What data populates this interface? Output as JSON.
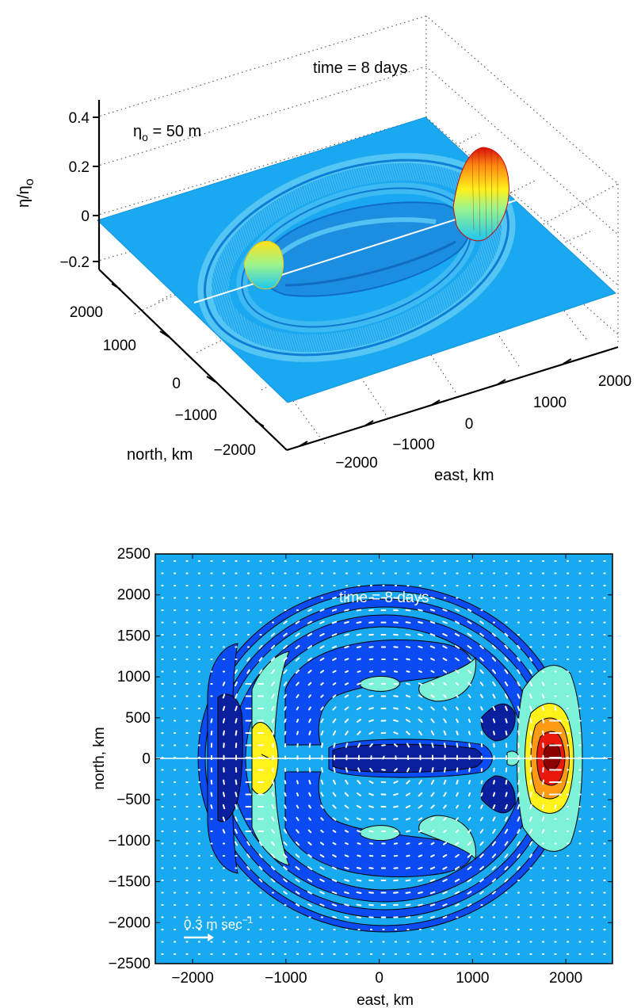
{
  "colors": {
    "background_sea": "#17AAF0",
    "blue_mid": "#0B4BF4",
    "blue_dark": "#0A1F9E",
    "cyan_light": "#7CF2D8",
    "yellow": "#FFF11A",
    "orange": "#FF9B12",
    "red": "#E8180A",
    "dark_red": "#8B0000",
    "arrow": "#FFFFFF"
  },
  "chart_data": [
    {
      "type": "surface",
      "title": "time = 8 days",
      "annotation": {
        "symbol": "η",
        "subscript": "o",
        "suffix": " = 50 m"
      },
      "zlabel": {
        "symbol": "η/η",
        "subscript": "o"
      },
      "xlabel": "east, km",
      "ylabel": "north, km",
      "z_ticks": [
        "0.4",
        "0.2",
        "0",
        "−0.2"
      ],
      "y_ticks": [
        "2000",
        "1000",
        "0",
        "−1000",
        "−2000"
      ],
      "x_ticks": [
        "−2000",
        "−1000",
        "0",
        "1000",
        "2000"
      ],
      "zlim": [
        -0.2,
        0.4
      ],
      "xlim": [
        -2500,
        2500
      ],
      "ylim": [
        -2500,
        2500
      ],
      "grid": true,
      "features": [
        {
          "name": "eastern peak",
          "x": 1900,
          "y": 0,
          "z": 0.33
        },
        {
          "name": "western bump",
          "x": -1200,
          "y": 0,
          "z": 0.12
        },
        {
          "name": "central trough",
          "x": 0,
          "y": 0,
          "z": -0.1
        }
      ]
    },
    {
      "type": "contour",
      "title": "time = 8 days",
      "xlabel": "east, km",
      "ylabel": "north, km",
      "xlim": [
        -2400,
        2500
      ],
      "ylim": [
        -2500,
        2500
      ],
      "x_ticks": [
        "−2000",
        "−1000",
        "0",
        "1000",
        "2000"
      ],
      "y_ticks": [
        "2500",
        "2000",
        "1500",
        "1000",
        "500",
        "0",
        "−500",
        "−1000",
        "−1500",
        "−2000",
        "−2500"
      ],
      "scale_arrow_label": {
        "text": "0.3 m sec",
        "superscript": "−1"
      },
      "grid": false
    }
  ]
}
